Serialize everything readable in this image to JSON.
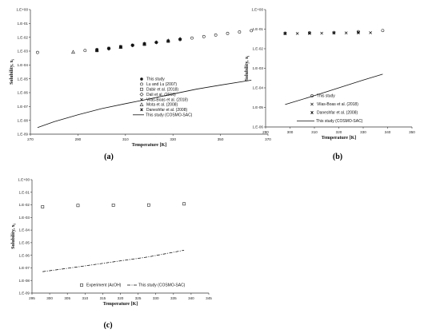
{
  "chart_data": [
    {
      "type": "scatter",
      "panel_label": "(a)",
      "xlabel": "Temperature [K]",
      "ylabel": "Solubility, x",
      "ylabel_sub": "i",
      "xlim": [
        270,
        370
      ],
      "ylim_log10": [
        -9,
        0
      ],
      "x_ticks": [
        "270",
        "290",
        "310",
        "330",
        "350",
        "370"
      ],
      "y_ticks": [
        "1.E-09",
        "1.E-08",
        "1.E-07",
        "1.E-06",
        "1.E-05",
        "1.E-04",
        "1.E-03",
        "1.E-02",
        "1.E-01",
        "1.E+00"
      ],
      "legend_position": "lower-right",
      "series": [
        {
          "name": "This study",
          "marker": "filled-circle",
          "x": [
            298,
            303,
            308,
            313,
            318,
            323,
            328,
            333
          ],
          "y": [
            0.0011,
            0.0015,
            0.002,
            0.0026,
            0.0033,
            0.0043,
            0.0056,
            0.0072
          ]
        },
        {
          "name": "Lu and Lu (2007)",
          "marker": "open-circle",
          "x": [
            273,
            293,
            298,
            303,
            308,
            313,
            318,
            323,
            328,
            333,
            338,
            343,
            348,
            353,
            358,
            363
          ],
          "y": [
            0.0008,
            0.0011,
            0.0013,
            0.0016,
            0.0021,
            0.0026,
            0.0033,
            0.0042,
            0.0053,
            0.0068,
            0.0088,
            0.0112,
            0.0145,
            0.019,
            0.024,
            0.03
          ]
        },
        {
          "name": "Dabir et al. (2018)",
          "marker": "open-square",
          "x": [
            298,
            308,
            318,
            328
          ],
          "y": [
            0.0011,
            0.0019,
            0.0031,
            0.0052
          ]
        },
        {
          "name": "Dali et al. (2016)",
          "marker": "open-diamond",
          "x": [
            303,
            313,
            323,
            333
          ],
          "y": [
            0.0015,
            0.0026,
            0.0043,
            0.0075
          ]
        },
        {
          "name": "Vilas-Boas et al. (2018)",
          "marker": "cross",
          "x": [
            298,
            308,
            318
          ],
          "y": [
            0.0012,
            0.0021,
            0.0034
          ]
        },
        {
          "name": "Mota et al. (2008)",
          "marker": "open-triangle",
          "x": [
            288,
            298,
            308,
            318,
            328
          ],
          "y": [
            0.00085,
            0.0012,
            0.002,
            0.0034,
            0.0057
          ]
        },
        {
          "name": "Daneshfar et al. (2008)",
          "marker": "x-mark",
          "x": [
            298,
            303,
            308,
            313,
            318
          ],
          "y": [
            0.0012,
            0.0016,
            0.0021,
            0.0027,
            0.0034
          ]
        },
        {
          "name": "This study (COSMO-SAC)",
          "marker": "line",
          "x": [
            273,
            280,
            290,
            300,
            310,
            320,
            330,
            340,
            350,
            363
          ],
          "y": [
            3e-09,
            8e-09,
            2.5e-08,
            7e-08,
            1.6e-07,
            3.5e-07,
            8e-07,
            1.8e-06,
            3.5e-06,
            8e-06
          ]
        }
      ]
    },
    {
      "type": "scatter",
      "panel_label": "(b)",
      "xlabel": "Temperature [K]",
      "ylabel": "Solubility, x",
      "ylabel_sub": "i",
      "xlim": [
        290,
        350
      ],
      "ylim_log10": [
        -6,
        0
      ],
      "x_ticks": [
        "290",
        "300",
        "310",
        "320",
        "330",
        "340",
        "350"
      ],
      "y_ticks": [
        "1.E-06",
        "1.E-05",
        "1.E-04",
        "1.E-03",
        "1.E-02",
        "1.E-01",
        "1.E+00"
      ],
      "legend_position": "lower-right",
      "series": [
        {
          "name": "This study",
          "marker": "open-circle",
          "x": [
            298,
            308,
            318,
            328,
            338
          ],
          "y": [
            0.062,
            0.065,
            0.068,
            0.074,
            0.085
          ]
        },
        {
          "name": "Vilas-Boas et al. (2018)",
          "marker": "cross",
          "x": [
            298,
            303,
            308,
            313,
            318,
            323,
            328,
            333
          ],
          "y": [
            0.058,
            0.06,
            0.061,
            0.062,
            0.063,
            0.064,
            0.065,
            0.066
          ]
        },
        {
          "name": "Daneshfar et al. (2008)",
          "marker": "x-mark",
          "x": [
            298,
            308,
            318,
            328
          ],
          "y": [
            0.06,
            0.062,
            0.064,
            0.067
          ]
        },
        {
          "name": "This study (COSMO-SAC)",
          "marker": "line",
          "x": [
            298,
            310,
            320,
            330,
            338
          ],
          "y": [
            1.4e-05,
            4e-05,
            0.0001,
            0.00025,
            0.0005
          ]
        }
      ]
    },
    {
      "type": "scatter",
      "panel_label": "(c)",
      "xlabel": "Temperature [K]",
      "ylabel": "Solubility, x",
      "ylabel_sub": "i",
      "xlim": [
        295,
        345
      ],
      "ylim_log10": [
        -9,
        0
      ],
      "x_ticks": [
        "295",
        "300",
        "305",
        "310",
        "315",
        "320",
        "325",
        "330",
        "335",
        "340",
        "345"
      ],
      "y_ticks": [
        "1.E-09",
        "1.E-08",
        "1.E-07",
        "1.E-06",
        "1.E-05",
        "1.E-04",
        "1.E-03",
        "1.E-02",
        "1.E-01",
        "1.E+00"
      ],
      "legend_position": "bottom-center",
      "series": [
        {
          "name": "Experiment (AcOH)",
          "marker": "open-square",
          "x": [
            298,
            308,
            318,
            328,
            338
          ],
          "y": [
            0.007,
            0.009,
            0.0095,
            0.0098,
            0.012
          ]
        },
        {
          "name": "This study (COSMO-SAC)",
          "marker": "dashdot",
          "x": [
            298,
            308,
            318,
            328,
            338
          ],
          "y": [
            5e-08,
            1.2e-07,
            3e-07,
            7.5e-07,
            2.5e-06
          ]
        }
      ]
    }
  ]
}
